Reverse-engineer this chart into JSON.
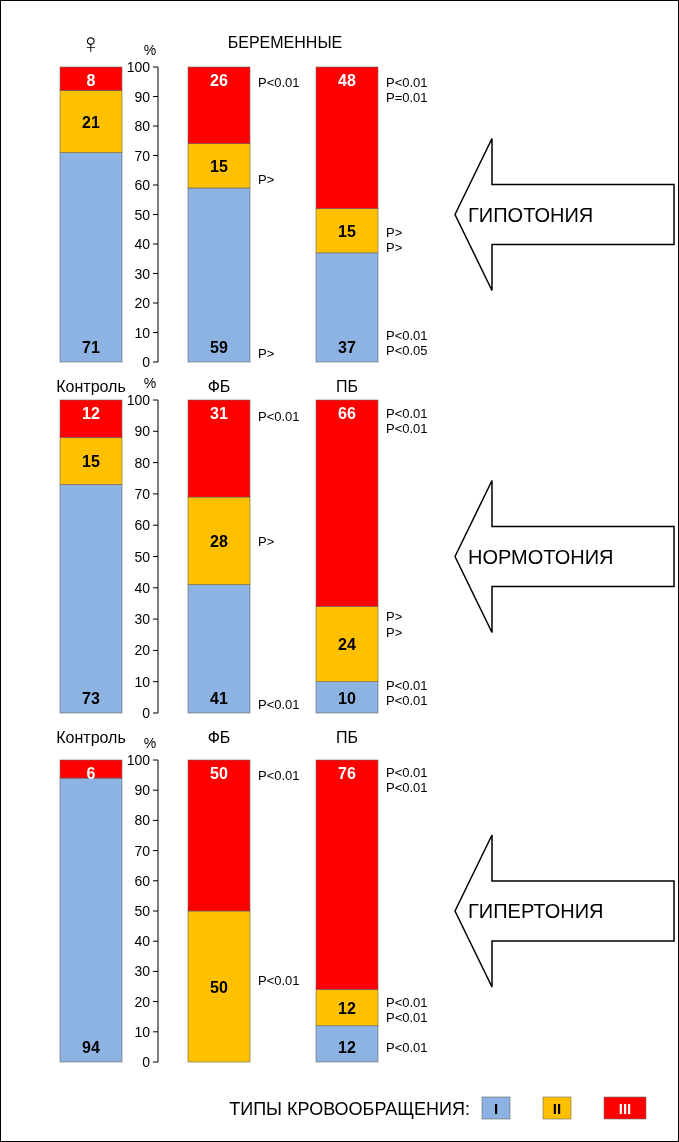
{
  "chart_data": [
    {
      "type": "bar",
      "stacked": true,
      "title": "БЕРЕМЕННЫЕ",
      "ylabel": "%",
      "categories": [
        "Контроль",
        "ФБ",
        "ПБ"
      ],
      "ylim": [
        0,
        100
      ],
      "yticks": [
        0,
        10,
        20,
        30,
        40,
        50,
        60,
        70,
        80,
        90,
        100
      ],
      "series": [
        {
          "color": "#8db3e2",
          "values": [
            71,
            59,
            37
          ],
          "value_labels": [
            "71",
            "59",
            "37"
          ]
        },
        {
          "color": "#ffc000",
          "values": [
            21,
            15,
            15
          ],
          "value_labels": [
            "21",
            "15",
            "15"
          ]
        },
        {
          "color": "#ff0000",
          "values": [
            8,
            26,
            48
          ],
          "value_labels": [
            "8",
            "26",
            "48"
          ]
        }
      ],
      "annotations": [
        "♀",
        "ГИПОТОНИЯ",
        "P<0.01",
        "P>",
        "P>",
        "P<0.01",
        "P=0.01",
        "P>",
        "P>",
        "P<0.01",
        "P<0.05"
      ]
    },
    {
      "type": "bar",
      "stacked": true,
      "ylabel": "%",
      "categories": [
        "Контроль",
        "ФБ",
        "ПБ"
      ],
      "ylim": [
        0,
        100
      ],
      "yticks": [
        0,
        10,
        20,
        30,
        40,
        50,
        60,
        70,
        80,
        90,
        100
      ],
      "series": [
        {
          "color": "#8db3e2",
          "values": [
            73,
            41,
            10
          ],
          "value_labels": [
            "73",
            "41",
            "10"
          ]
        },
        {
          "color": "#ffc000",
          "values": [
            15,
            28,
            24
          ],
          "value_labels": [
            "15",
            "28",
            "24"
          ]
        },
        {
          "color": "#ff0000",
          "values": [
            12,
            31,
            66
          ],
          "value_labels": [
            "12",
            "31",
            "66"
          ]
        }
      ],
      "annotations": [
        "НОРМОТОНИЯ",
        "P<0.01",
        "P>",
        "P<0.01",
        "P<0.01",
        "P<0.01",
        "P>",
        "P>",
        "P<0.01",
        "P<0.01"
      ]
    },
    {
      "type": "bar",
      "stacked": true,
      "ylabel": "%",
      "categories": [
        null,
        null,
        null
      ],
      "ylim": [
        0,
        100
      ],
      "yticks": [
        0,
        10,
        20,
        30,
        40,
        50,
        60,
        70,
        80,
        90,
        100
      ],
      "series": [
        {
          "name": "I",
          "color": "#8db3e2",
          "values": [
            94,
            0,
            12
          ],
          "value_labels": [
            "94",
            null,
            "12"
          ]
        },
        {
          "name": "II",
          "color": "#ffc000",
          "values": [
            0,
            50,
            12
          ],
          "value_labels": [
            null,
            "50",
            "12"
          ]
        },
        {
          "name": "III",
          "color": "#ff0000",
          "values": [
            6,
            50,
            76
          ],
          "value_labels": [
            "6",
            "50",
            "76"
          ]
        }
      ],
      "legend": "bottom",
      "legend_title": "ТИПЫ КРОВООБРАЩЕНИЯ:",
      "annotations": [
        "ГИПЕРТОНИЯ",
        "P<0.01",
        "P<0.01",
        "P<0.01",
        "P<0.01",
        "P<0.01",
        "P<0.01",
        "P<0.01"
      ]
    }
  ]
}
